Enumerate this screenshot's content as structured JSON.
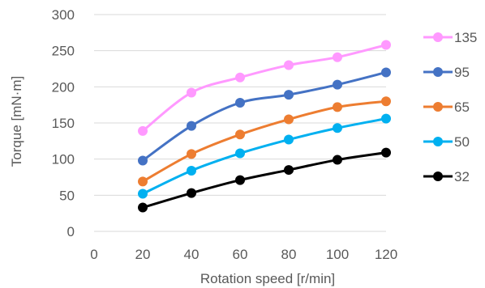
{
  "chart_data": {
    "type": "line",
    "title": "",
    "xlabel": "Rotation speed [r/min]",
    "ylabel": "Torque [mN·m]",
    "xlim": [
      0,
      120
    ],
    "ylim": [
      0,
      300
    ],
    "xticks": [
      0,
      20,
      40,
      60,
      80,
      100,
      120
    ],
    "yticks": [
      0,
      50,
      100,
      150,
      200,
      250,
      300
    ],
    "grid": "horizontal",
    "legend_position": "right",
    "smooth": true,
    "x": [
      20,
      40,
      60,
      80,
      100,
      120
    ],
    "series": [
      {
        "name": "135",
        "color": "#FF99FF",
        "values": [
          139,
          192,
          213,
          230,
          241,
          258
        ]
      },
      {
        "name": "95",
        "color": "#4472C4",
        "values": [
          98,
          146,
          178,
          189,
          203,
          220
        ]
      },
      {
        "name": "65",
        "color": "#ED7D31",
        "values": [
          69,
          107,
          134,
          155,
          172,
          180
        ]
      },
      {
        "name": "50",
        "color": "#00B0F0",
        "values": [
          52,
          84,
          108,
          127,
          143,
          156
        ]
      },
      {
        "name": "32",
        "color": "#000000",
        "values": [
          33,
          53,
          71,
          85,
          99,
          109
        ]
      }
    ]
  }
}
